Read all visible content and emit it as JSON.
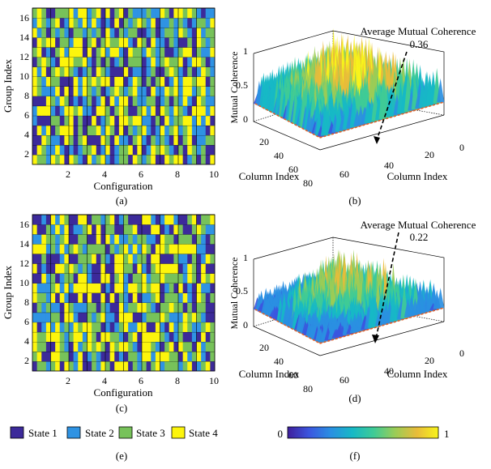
{
  "colors": {
    "state1": "#3c2a9a",
    "state2": "#2f93e3",
    "state3": "#77c25a",
    "state4": "#fdf50c",
    "grid_line": "#000000",
    "floor": "#e35f24",
    "colormap": [
      "#3e1f9c",
      "#3b56df",
      "#2a8fe2",
      "#17b8c6",
      "#3fcb96",
      "#9bcc56",
      "#e8bc3a",
      "#f8f41a"
    ]
  },
  "chart_data": [
    {
      "id": "a",
      "type": "heatmap",
      "caption": "(a)",
      "xlabel": "Configuration",
      "ylabel": "Group Index",
      "xticks": [
        "2",
        "4",
        "6",
        "8",
        "10"
      ],
      "yticks": [
        "2",
        "4",
        "6",
        "8",
        "10",
        "12",
        "14",
        "16"
      ],
      "xlim": [
        0,
        10
      ],
      "ylim": [
        0.5,
        16.5
      ],
      "columns_per_configuration": 4,
      "rows": [
        "4332434143214234212331432341143441231314",
        "1432242121233412412334141243432131432311",
        "1143221431341114314221342132321413412233",
        "1424134441313342431413234212423423422214",
        "2111331341311412341443442213142334424241",
        "2444212443422144313431134241432432144424",
        "1114324312123124142441322331231324214322",
        "4322241414243231234323422142243424423423",
        "4324331114243434414412431313412424434413",
        "4241343432123143211141221231134321312432",
        "1343214443342131312313331242343341244312",
        "3412134244414134244214332432311234413224",
        "1434413324413413433442143142213211314323",
        "4231323213323231421323311231233243214233",
        "2432341243242421214132343241223232123324",
        "3431133342442341413413222322431443432122"
      ]
    },
    {
      "id": "b",
      "type": "surface3d",
      "caption": "(b)",
      "zlabel": "Mutual Coherence",
      "xlabel": "Column Index",
      "ylabel": "Column Index",
      "zticks": [
        "0",
        "0.5",
        "1"
      ],
      "left_axis_ticks": [
        "20",
        "40",
        "60",
        "80"
      ],
      "right_axis_ticks": [
        "0",
        "20",
        "40",
        "60"
      ],
      "average_label": "Average Mutual Coherence",
      "average_value": "0.36",
      "average": 0.36
    },
    {
      "id": "c",
      "type": "heatmap",
      "caption": "(c)",
      "xlabel": "Configuration",
      "ylabel": "Group Index",
      "xticks": [
        "2",
        "4",
        "6",
        "8",
        "10"
      ],
      "yticks": [
        "2",
        "4",
        "6",
        "8",
        "10",
        "12",
        "14",
        "16"
      ],
      "xlim": [
        0,
        10
      ],
      "ylim": [
        0.5,
        16.5
      ],
      "columns_per_configuration": 4,
      "rows": [
        "1332341432411324314441323134233323412341",
        "3411443312412321141213324424443314234213",
        "4331143214234343143443214432134143314233",
        "4334443234424314433213414444321231121413",
        "4124242324344331212342244114214234322343",
        "2222331442113234221444112333432224343211",
        "1323221432223313211423344321334331313311",
        "4332414211414114141321412234133324214313",
        "4222342424444441214424434344123141214221",
        "1142312331442114413421334233433332431434",
        "4121144343232114114433142134444412431411",
        "1131112411333413214434233144111322131243",
        "4442324234323333132342424314434444442211",
        "2243323411331141424223233221433133313213",
        "4113242412234141331133411144121431134322",
        "1121424311441332341231114421244211341334"
      ]
    },
    {
      "id": "d",
      "type": "surface3d",
      "caption": "(d)",
      "zlabel": "Mutual Coherence",
      "xlabel": "Column Index",
      "ylabel": "Column Index",
      "zticks": [
        "0",
        "0.5",
        "1"
      ],
      "left_axis_ticks": [
        "20",
        "40",
        "60",
        "80"
      ],
      "right_axis_ticks": [
        "0",
        "20",
        "40",
        "60"
      ],
      "average_label": "Average Mutual Coherence",
      "average_value": "0.22",
      "average": 0.22
    },
    {
      "id": "e",
      "type": "legend",
      "caption": "(e)",
      "entries": [
        "State 1",
        "State 2",
        "State 3",
        "State 4"
      ]
    },
    {
      "id": "f",
      "type": "colorbar",
      "caption": "(f)",
      "min_label": "0",
      "max_label": "1",
      "range": [
        0,
        1
      ]
    }
  ]
}
